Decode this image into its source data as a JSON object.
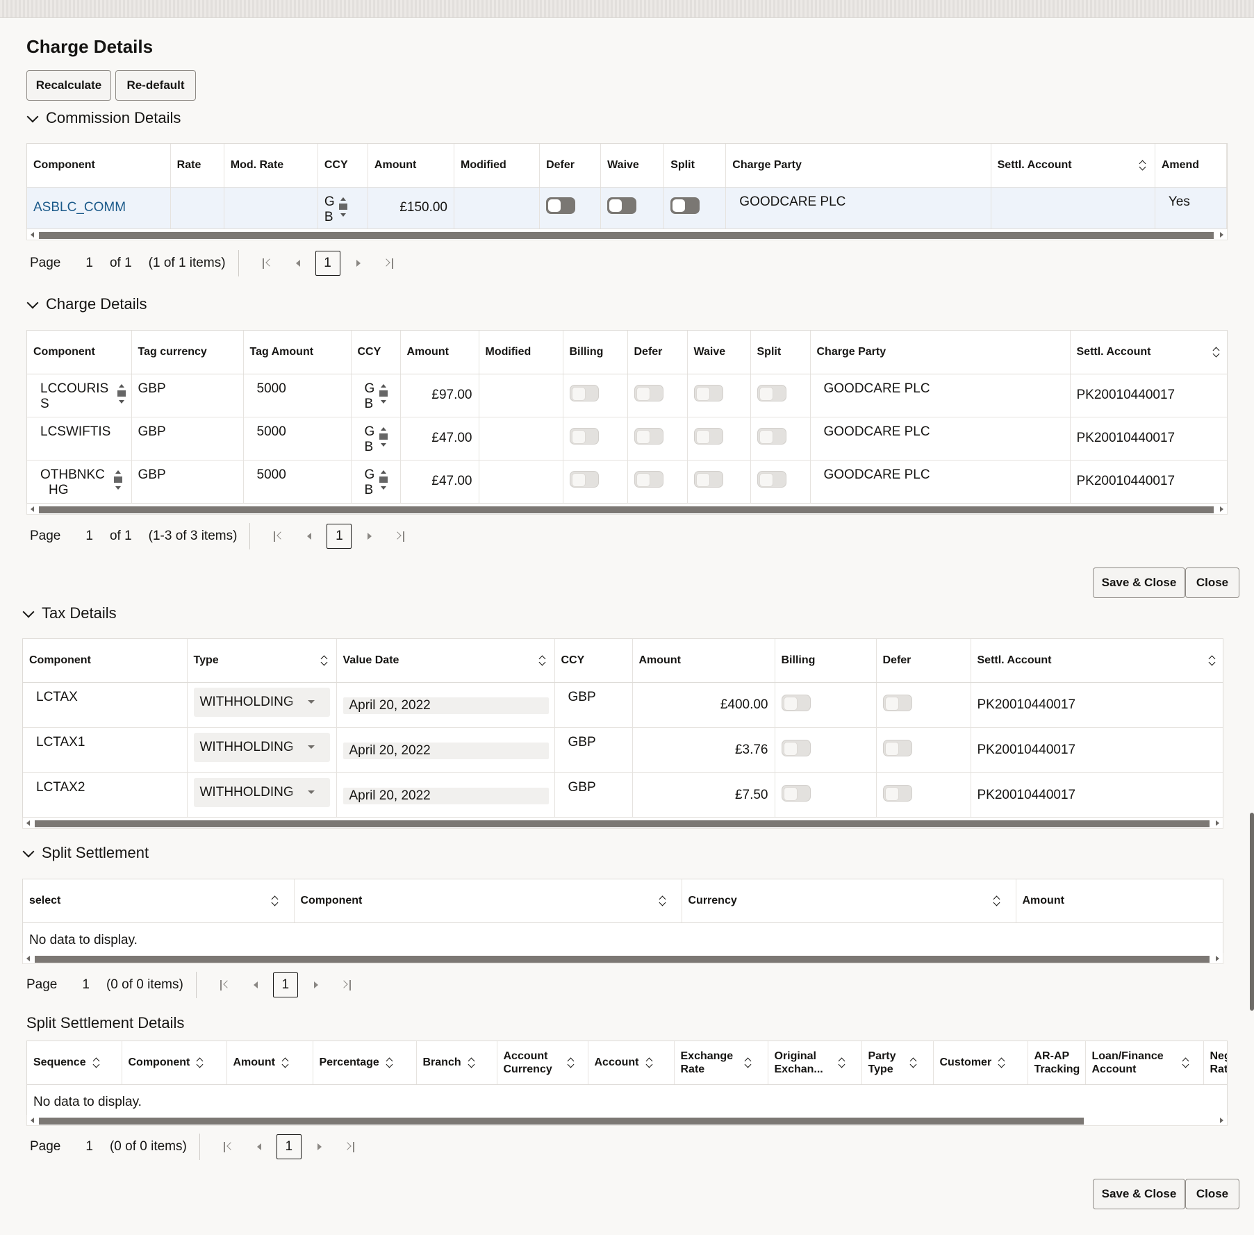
{
  "page": {
    "title": "Charge Details"
  },
  "actions": {
    "recalculate": "Recalculate",
    "redefault": "Re-default",
    "save_close": "Save & Close",
    "close": "Close"
  },
  "commission": {
    "title": "Commission Details",
    "columns": [
      "Component",
      "Rate",
      "Mod. Rate",
      "CCY",
      "Amount",
      "Modified",
      "Defer",
      "Waive",
      "Split",
      "Charge Party",
      "Settl. Account",
      "Amend"
    ],
    "rows": [
      {
        "component": "ASBLC_COMM",
        "rate": "",
        "mod_rate": "",
        "ccy_1": "G",
        "ccy_2": "B",
        "amount": "£150.00",
        "modified": "",
        "defer": false,
        "waive": false,
        "split": false,
        "charge_party": "GOODCARE PLC",
        "settl_account": "",
        "amend": "Yes"
      }
    ],
    "pager": {
      "label": "Page",
      "page": "1",
      "of": "of 1",
      "items": "(1 of 1 items)",
      "current": "1"
    }
  },
  "charge": {
    "title": "Charge Details",
    "columns": [
      "Component",
      "Tag currency",
      "Tag Amount",
      "CCY",
      "Amount",
      "Modified",
      "Billing",
      "Defer",
      "Waive",
      "Split",
      "Charge Party",
      "Settl. Account"
    ],
    "rows": [
      {
        "comp_1": "LCCOURIS",
        "comp_2": "S",
        "tag_ccy": "GBP",
        "tag_amount": "5000",
        "ccy_1": "G",
        "ccy_2": "B",
        "amount": "£97.00",
        "modified": "",
        "charge_party": "GOODCARE PLC",
        "settl_account": "PK20010440017"
      },
      {
        "comp_1": "LCSWIFTIS",
        "comp_2": "",
        "tag_ccy": "GBP",
        "tag_amount": "5000",
        "ccy_1": "G",
        "ccy_2": "B",
        "amount": "£47.00",
        "modified": "",
        "charge_party": "GOODCARE PLC",
        "settl_account": "PK20010440017"
      },
      {
        "comp_1": "OTHBNKC",
        "comp_2": "HG",
        "tag_ccy": "GBP",
        "tag_amount": "5000",
        "ccy_1": "G",
        "ccy_2": "B",
        "amount": "£47.00",
        "modified": "",
        "charge_party": "GOODCARE PLC",
        "settl_account": "PK20010440017"
      }
    ],
    "pager": {
      "label": "Page",
      "page": "1",
      "of": "of 1",
      "items": "(1-3 of 3 items)",
      "current": "1"
    }
  },
  "tax": {
    "title": "Tax Details",
    "columns": [
      "Component",
      "Type",
      "Value Date",
      "CCY",
      "Amount",
      "Billing",
      "Defer",
      "Settl. Account"
    ],
    "rows": [
      {
        "component": "LCTAX",
        "type": "WITHHOLDING",
        "value_date": "April 20, 2022",
        "ccy": "GBP",
        "amount": "£400.00",
        "settl_account": "PK20010440017"
      },
      {
        "component": "LCTAX1",
        "type": "WITHHOLDING",
        "value_date": "April 20, 2022",
        "ccy": "GBP",
        "amount": "£3.76",
        "settl_account": "PK20010440017"
      },
      {
        "component": "LCTAX2",
        "type": "WITHHOLDING",
        "value_date": "April 20, 2022",
        "ccy": "GBP",
        "amount": "£7.50",
        "settl_account": "PK20010440017"
      }
    ]
  },
  "split": {
    "title": "Split Settlement",
    "columns": [
      "select",
      "Component",
      "Currency",
      "Amount"
    ],
    "empty": "No data to display.",
    "pager": {
      "label": "Page",
      "page": "1",
      "items": "(0 of 0 items)",
      "current": "1"
    }
  },
  "split_details": {
    "title": "Split Settlement Details",
    "columns": [
      "Sequence",
      "Component",
      "Amount",
      "Percentage",
      "Branch",
      "Account Currency",
      "Account",
      "Exchange Rate",
      "Original Exchan...",
      "Party Type",
      "Customer",
      "AR-AP Tracking",
      "Loan/Finance Account",
      "Neg Rat"
    ],
    "empty": "No data to display.",
    "pager": {
      "label": "Page",
      "page": "1",
      "items": "(0 of 0 items)",
      "current": "1"
    }
  },
  "icons": {
    "collapse": "chevron-down-icon",
    "sort": "sort-icon",
    "stepper": "stepper-icon"
  },
  "colors": {
    "link": "#1b5a8a",
    "selected_row": "#eef3fa",
    "toggle_on": "#7a7773"
  }
}
